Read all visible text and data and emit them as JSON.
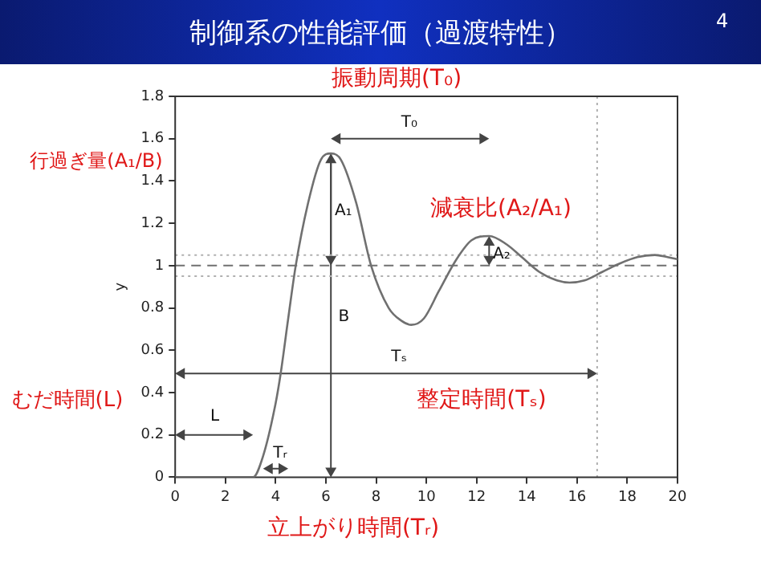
{
  "chart_data": {
    "type": "line",
    "title": "制御系の性能評価（過渡特性）",
    "ylabel": "y",
    "x": [
      0,
      3.1,
      3.5,
      4,
      4.2,
      4.5,
      4.8,
      5.3,
      5.8,
      6.2,
      6.6,
      7.2,
      7.8,
      8.5,
      9,
      9.4,
      9.9,
      10.5,
      11.2,
      11.8,
      12.5,
      13.2,
      13.8,
      14.5,
      15.2,
      15.7,
      16.3,
      17,
      17.7,
      18.4,
      19.1,
      19.6,
      20
    ],
    "series": [
      {
        "color": "#707070",
        "values": [
          0,
          0,
          0.1,
          0.35,
          0.49,
          0.75,
          1.0,
          1.3,
          1.5,
          1.53,
          1.5,
          1.3,
          1.0,
          0.8,
          0.74,
          0.72,
          0.75,
          0.88,
          1.03,
          1.12,
          1.14,
          1.1,
          1.04,
          0.97,
          0.93,
          0.92,
          0.93,
          0.97,
          1.01,
          1.04,
          1.05,
          1.04,
          1.03
        ]
      }
    ],
    "xlim": [
      0,
      20
    ],
    "xticks": [
      0,
      2,
      4,
      6,
      8,
      10,
      12,
      14,
      16,
      18,
      20
    ],
    "ylim": [
      0,
      1.8
    ],
    "yticks": [
      0,
      0.2,
      0.4,
      0.6,
      0.8,
      1,
      1.2,
      1.4,
      1.6,
      1.8
    ],
    "grid": false,
    "legend": false,
    "marker": "none",
    "line_style": "solid",
    "ref_lines": [
      {
        "axis": "y",
        "value": 1,
        "line_style": "dashed",
        "color": "#707070"
      },
      {
        "axis": "y",
        "value": 1.05,
        "line_style": "dotted",
        "color": "#b0b0b0"
      },
      {
        "axis": "y",
        "value": 0.95,
        "line_style": "dotted",
        "color": "#b0b0b0"
      },
      {
        "axis": "x",
        "value": 16.8,
        "line_style": "dotted",
        "color": "#b0b0b0"
      }
    ],
    "annotations": [
      "4",
      "振動周期(T₀)",
      "行過ぎ量(A₁/B)",
      "減衰比(A₂/A₁)",
      "むだ時間(L)",
      "整定時間(Tₛ)",
      "立上がり時間(Tᵣ)",
      "T₀",
      "A₁",
      "A₂",
      "B",
      "Tₛ",
      "L",
      "Tᵣ"
    ]
  }
}
